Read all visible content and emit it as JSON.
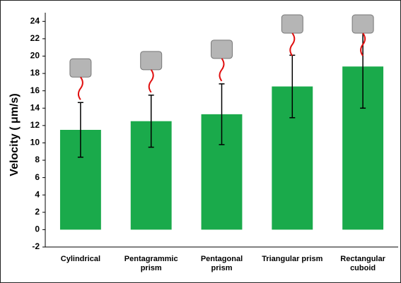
{
  "chart_data": {
    "type": "bar",
    "y_label": "Velocity ( μm/s)",
    "categories": [
      "Cylindrical",
      "Pentagrammic prism",
      "Pentagonal prism",
      "Triangular prism",
      "Rectangular cuboid"
    ],
    "values": [
      11.5,
      12.5,
      13.3,
      16.5,
      18.8
    ],
    "errors": [
      3.15,
      3.0,
      3.5,
      3.6,
      4.8
    ],
    "color": "#1aaa4b",
    "ylim": [
      -2,
      25
    ],
    "yticks": [
      -2,
      0,
      2,
      4,
      6,
      8,
      10,
      12,
      14,
      16,
      18,
      20,
      22,
      24
    ]
  }
}
